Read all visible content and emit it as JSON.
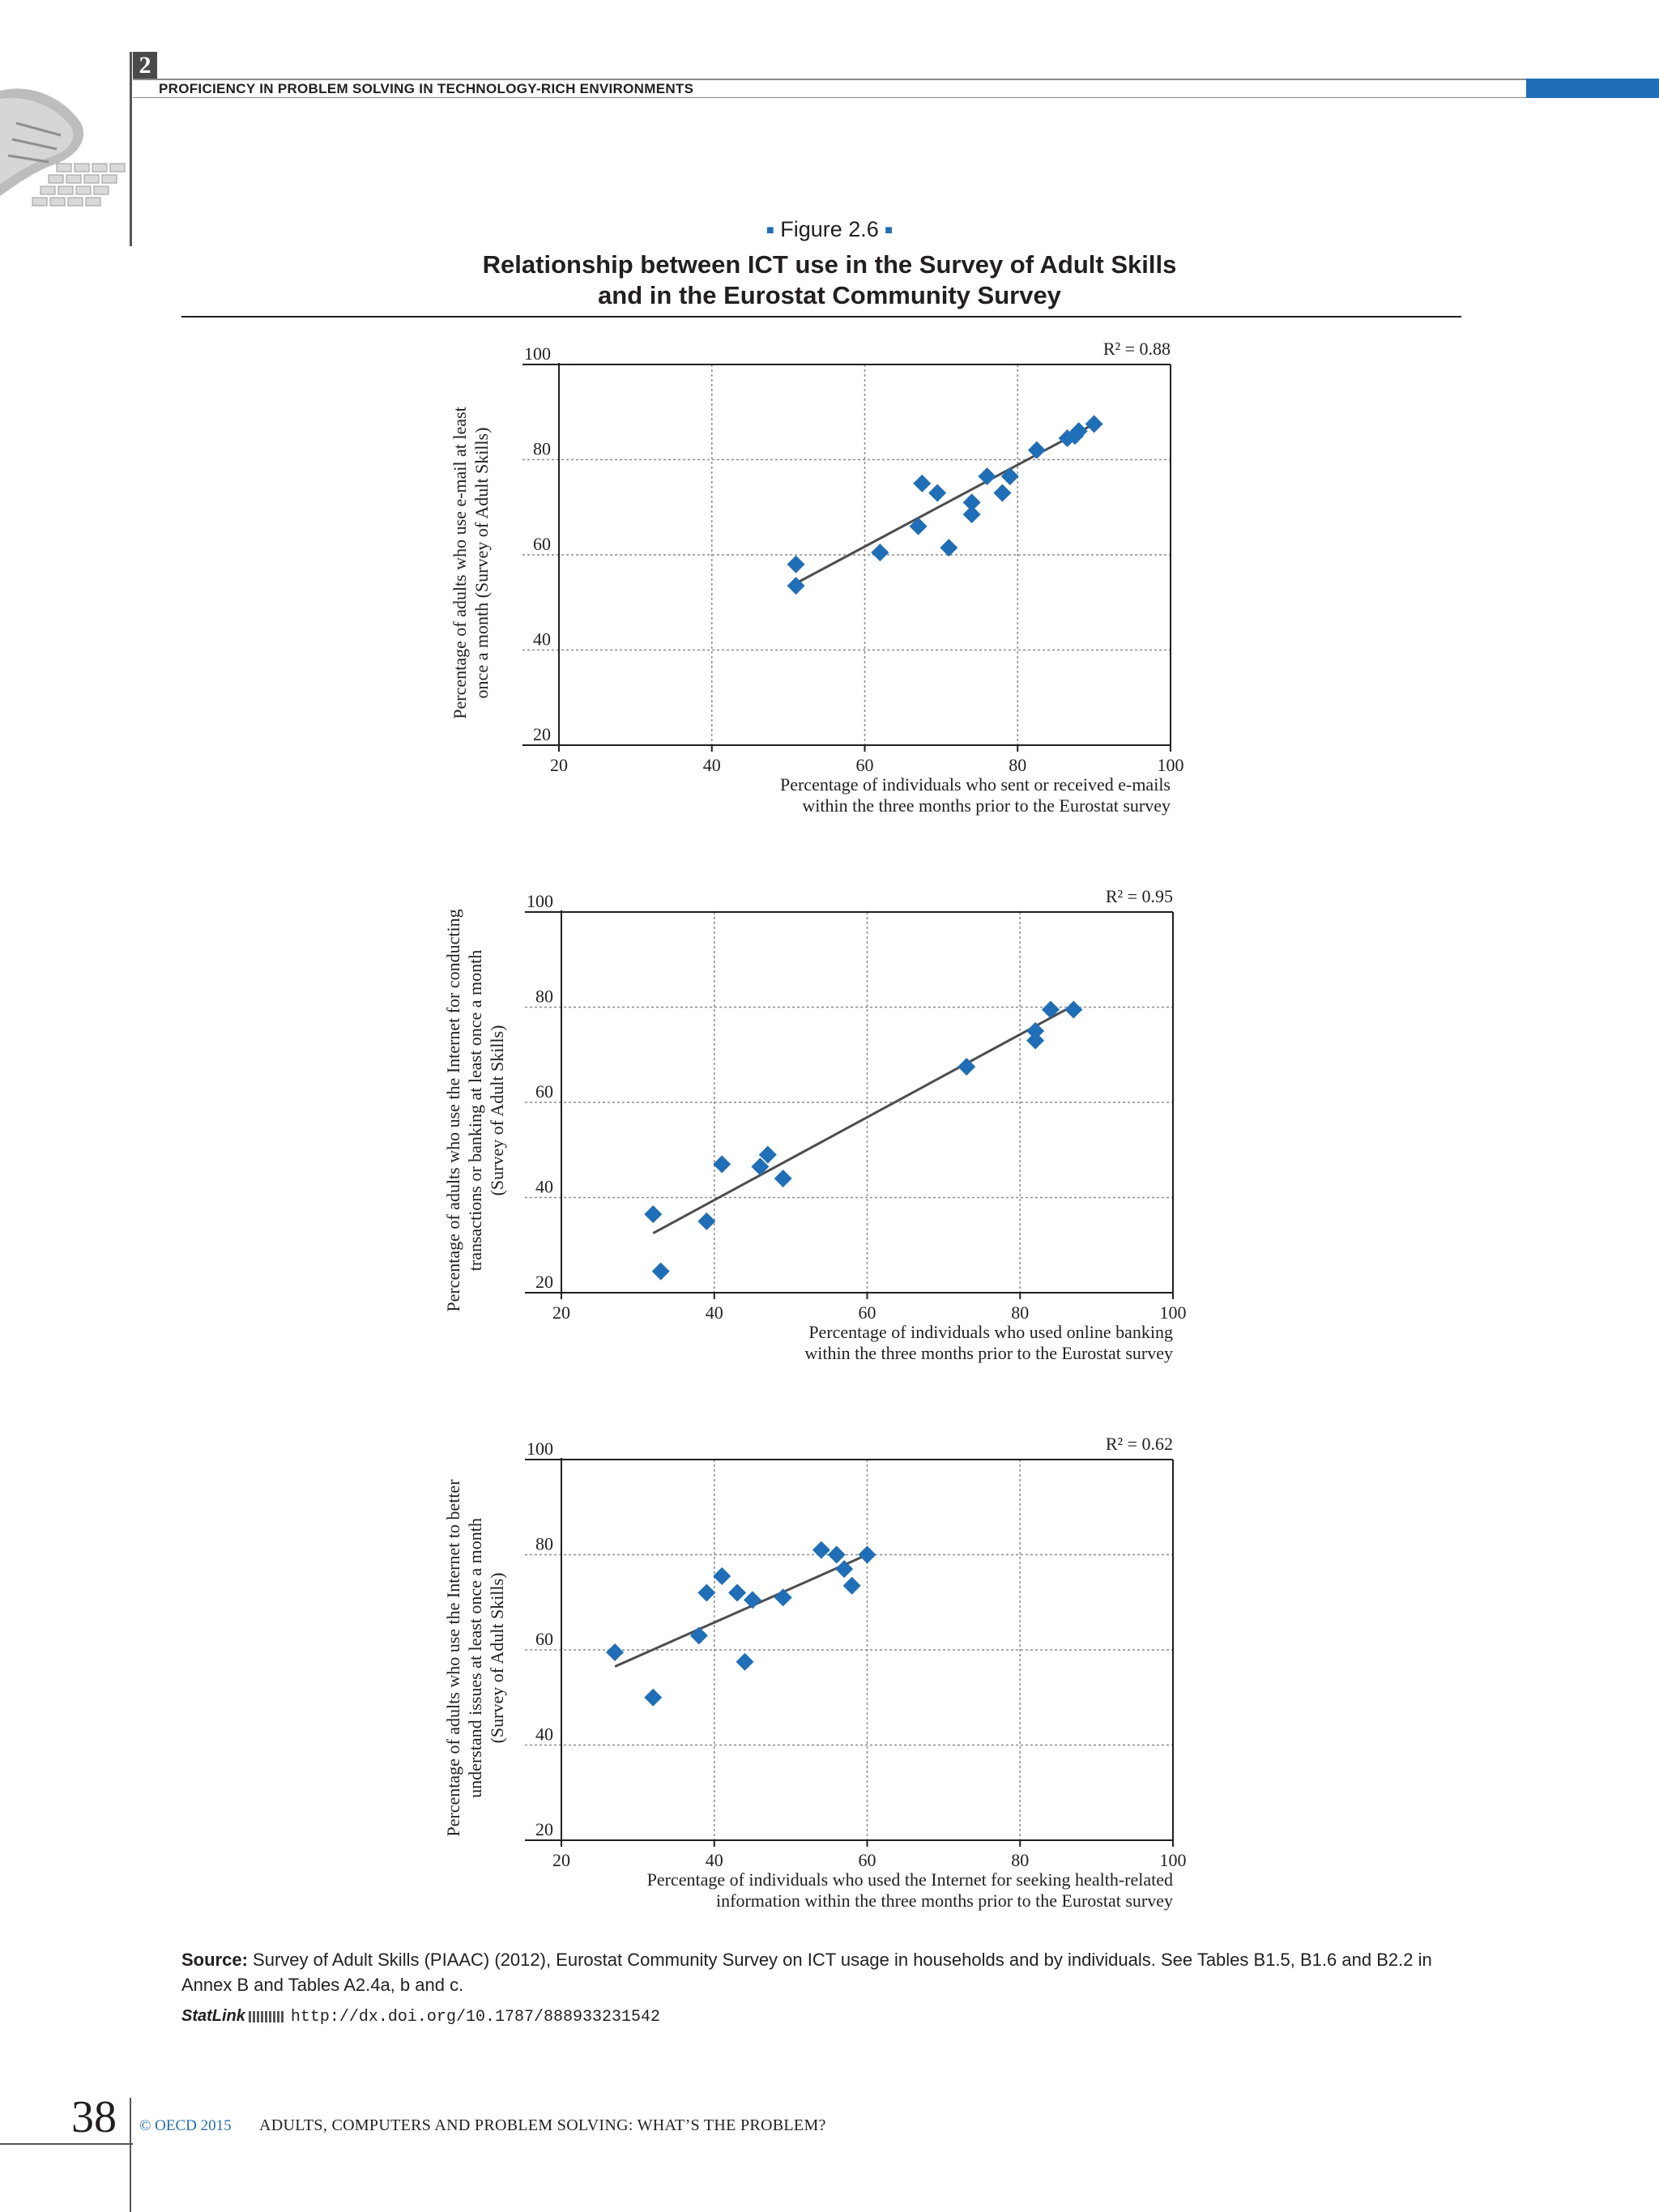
{
  "header": {
    "chapter_number": "2",
    "chapter_title": "PROFICIENCY IN PROBLEM SOLVING IN TECHNOLOGY-RICH ENVIRONMENTS"
  },
  "figure": {
    "label": "Figure 2.6",
    "title_line1": "Relationship between ICT use in the Survey of Adult Skills",
    "title_line2": "and in the Eurostat Community Survey"
  },
  "chart_data": [
    {
      "type": "scatter",
      "r2_label": "R² = 0.88",
      "ylabel_lines": [
        "Percentage of adults who use e-mail at least",
        "once a month (Survey of Adult Skills)"
      ],
      "xlabel_lines": [
        "Percentage of individuals who sent or received e-mails",
        "within the three months prior to the Eurostat survey"
      ],
      "xlim": [
        20,
        100
      ],
      "ylim": [
        20,
        100
      ],
      "xticks": [
        20,
        40,
        60,
        80,
        100
      ],
      "yticks": [
        20,
        40,
        60,
        80,
        100
      ],
      "grid": true,
      "trendline": {
        "x": [
          51,
          90
        ],
        "y": [
          54,
          87.5
        ]
      },
      "points": [
        {
          "x": 51,
          "y": 58
        },
        {
          "x": 51,
          "y": 53.5
        },
        {
          "x": 62,
          "y": 60.5
        },
        {
          "x": 67,
          "y": 66
        },
        {
          "x": 67.5,
          "y": 75
        },
        {
          "x": 69.5,
          "y": 73
        },
        {
          "x": 71,
          "y": 61.5
        },
        {
          "x": 74,
          "y": 71
        },
        {
          "x": 74,
          "y": 68.5
        },
        {
          "x": 76,
          "y": 76.5
        },
        {
          "x": 78,
          "y": 73
        },
        {
          "x": 79,
          "y": 76.5
        },
        {
          "x": 82.5,
          "y": 82
        },
        {
          "x": 86.5,
          "y": 84.5
        },
        {
          "x": 87.5,
          "y": 85
        },
        {
          "x": 88,
          "y": 86
        },
        {
          "x": 90,
          "y": 87.5
        }
      ]
    },
    {
      "type": "scatter",
      "r2_label": "R² = 0.95",
      "ylabel_lines": [
        "Percentage of adults who use the Internet for conducting",
        "transactions or banking at least once a month",
        "(Survey of Adult Skills)"
      ],
      "xlabel_lines": [
        "Percentage of individuals who used online banking",
        "within  the three months prior to the Eurostat survey"
      ],
      "xlim": [
        20,
        100
      ],
      "ylim": [
        20,
        100
      ],
      "xticks": [
        20,
        40,
        60,
        80,
        100
      ],
      "yticks": [
        20,
        40,
        60,
        80,
        100
      ],
      "grid": true,
      "trendline": {
        "x": [
          32,
          86
        ],
        "y": [
          32.5,
          79.5
        ]
      },
      "points": [
        {
          "x": 32,
          "y": 36.5
        },
        {
          "x": 33,
          "y": 24.5
        },
        {
          "x": 39,
          "y": 35
        },
        {
          "x": 41,
          "y": 47
        },
        {
          "x": 46,
          "y": 46.5
        },
        {
          "x": 47,
          "y": 49
        },
        {
          "x": 49,
          "y": 44
        },
        {
          "x": 73,
          "y": 67.5
        },
        {
          "x": 82,
          "y": 75
        },
        {
          "x": 82,
          "y": 73
        },
        {
          "x": 84,
          "y": 79.5
        },
        {
          "x": 87,
          "y": 79.5
        }
      ]
    },
    {
      "type": "scatter",
      "r2_label": "R² = 0.62",
      "ylabel_lines": [
        "Percentage of adults who use the Internet to better",
        "understand issues at least once a month",
        "(Survey of Adult Skills)"
      ],
      "xlabel_lines": [
        "Percentage of individuals who used the Internet for seeking health-related",
        "information within the three months prior to the Eurostat survey"
      ],
      "xlim": [
        20,
        100
      ],
      "ylim": [
        20,
        100
      ],
      "xticks": [
        20,
        40,
        60,
        80,
        100
      ],
      "yticks": [
        20,
        40,
        60,
        80,
        100
      ],
      "grid": true,
      "trendline": {
        "x": [
          27,
          60
        ],
        "y": [
          56.5,
          80
        ]
      },
      "points": [
        {
          "x": 27,
          "y": 59.5
        },
        {
          "x": 32,
          "y": 50
        },
        {
          "x": 38,
          "y": 63
        },
        {
          "x": 39,
          "y": 72
        },
        {
          "x": 41,
          "y": 75.5
        },
        {
          "x": 43,
          "y": 72
        },
        {
          "x": 44,
          "y": 57.5
        },
        {
          "x": 45,
          "y": 70.5
        },
        {
          "x": 49,
          "y": 71
        },
        {
          "x": 54,
          "y": 81
        },
        {
          "x": 56,
          "y": 80
        },
        {
          "x": 57,
          "y": 77
        },
        {
          "x": 58,
          "y": 73.5
        },
        {
          "x": 60,
          "y": 80
        }
      ]
    }
  ],
  "source": {
    "label": "Source:",
    "text": "Survey of Adult Skills (PIAAC) (2012), Eurostat Community Survey on ICT usage in households and by individuals. See Tables B1.5, B1.6 and B2.2 in Annex B and Tables A2.4a, b and c."
  },
  "statlink": {
    "label": "StatLink",
    "url": "http://dx.doi.org/10.1787/888933231542"
  },
  "footer": {
    "page_number": "38",
    "copyright": "© OECD 2015",
    "book_title": "ADULTS, COMPUTERS AND PROBLEM SOLVING: WHAT’S THE PROBLEM?"
  },
  "colors": {
    "marker": "#1f6fb8",
    "trendline": "#4d4d4d",
    "accent": "#1f6fb8"
  }
}
